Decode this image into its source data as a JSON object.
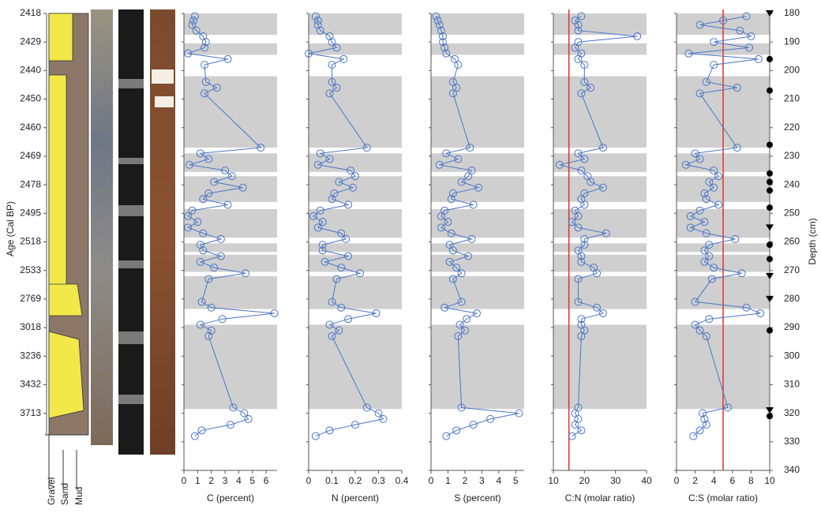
{
  "chart_data": {
    "type": "depth-profile",
    "y_label": "Depth (cm)",
    "ylim": [
      180,
      340
    ],
    "yticks": [
      180,
      190,
      200,
      210,
      220,
      230,
      240,
      250,
      260,
      270,
      280,
      290,
      300,
      310,
      320,
      330,
      340
    ],
    "age_label": "Age (Cal BP)",
    "age_ticks": [
      {
        "value": 180,
        "label": "2418"
      },
      {
        "value": 190,
        "label": "2429"
      },
      {
        "value": 200,
        "label": "2440"
      },
      {
        "value": 210,
        "label": "2450"
      },
      {
        "value": 220,
        "label": "2460"
      },
      {
        "value": 230,
        "label": "2469"
      },
      {
        "value": 240,
        "label": "2478"
      },
      {
        "value": 250,
        "label": "2495"
      },
      {
        "value": 260,
        "label": "2518"
      },
      {
        "value": 270,
        "label": "2533"
      },
      {
        "value": 280,
        "label": "2769"
      },
      {
        "value": 290,
        "label": "3018"
      },
      {
        "value": 300,
        "label": "3236"
      },
      {
        "value": 310,
        "label": "3432"
      },
      {
        "value": 320,
        "label": "3713"
      }
    ],
    "lithology_labels": [
      "Gravel",
      "Sand",
      "Mud"
    ],
    "gray_intervals": [
      [
        180,
        187.5
      ],
      [
        190.5,
        194.5
      ],
      [
        202,
        227
      ],
      [
        229,
        235.5
      ],
      [
        237,
        246
      ],
      [
        248.5,
        258.5
      ],
      [
        260.5,
        263.5
      ],
      [
        264.5,
        270.5
      ],
      [
        272,
        283.5
      ],
      [
        289,
        318.5
      ]
    ],
    "triangle_depths": [
      180,
      255,
      272,
      280,
      319
    ],
    "circle_depths": [
      196,
      207,
      226,
      236,
      239,
      242,
      248,
      261,
      266,
      291,
      321
    ],
    "depths": [
      181,
      182.5,
      184,
      186,
      188,
      190,
      192,
      194,
      196,
      198,
      204,
      206,
      208,
      227,
      229,
      231,
      233,
      235,
      237,
      239,
      241,
      243,
      245,
      247,
      249,
      251,
      253,
      255,
      257,
      259,
      261,
      263,
      265,
      267,
      269,
      271,
      273,
      281,
      283,
      285,
      287,
      289,
      291,
      293,
      318,
      320,
      322,
      324,
      326,
      328
    ],
    "color": "#4a76c8",
    "ref_color": "#e0302a",
    "panels": [
      {
        "x_label": "C (percent)",
        "xlim": [
          0,
          6.8
        ],
        "xticks": [
          0,
          1,
          2,
          3,
          4,
          5,
          6
        ],
        "values": [
          0.8,
          0.7,
          0.6,
          0.9,
          1.4,
          1.6,
          1.5,
          0.3,
          3.2,
          1.5,
          1.6,
          2.4,
          1.5,
          5.6,
          1.2,
          1.8,
          0.4,
          3.0,
          3.5,
          2.2,
          4.3,
          1.8,
          1.4,
          3.2,
          0.6,
          0.3,
          1.0,
          0.3,
          1.4,
          2.7,
          1.2,
          1.4,
          2.7,
          1.2,
          2.2,
          4.5,
          1.8,
          1.3,
          2.0,
          6.6,
          2.8,
          1.2,
          2.0,
          1.8,
          3.6,
          4.4,
          4.7,
          3.4,
          1.3,
          0.8
        ]
      },
      {
        "x_label": "N (percent)",
        "xlim": [
          0,
          0.4
        ],
        "xticks": [
          0,
          0.1,
          0.2,
          0.3,
          0.4
        ],
        "values": [
          0.03,
          0.04,
          0.04,
          0.05,
          0.09,
          0.1,
          0.12,
          0.0,
          0.15,
          0.1,
          0.1,
          0.12,
          0.09,
          0.25,
          0.05,
          0.09,
          0.04,
          0.18,
          0.2,
          0.13,
          0.19,
          0.11,
          0.1,
          0.17,
          0.05,
          0.02,
          0.06,
          0.04,
          0.14,
          0.16,
          0.06,
          0.06,
          0.17,
          0.07,
          0.14,
          0.22,
          0.12,
          0.1,
          0.14,
          0.29,
          0.17,
          0.09,
          0.13,
          0.1,
          0.25,
          0.3,
          0.32,
          0.2,
          0.09,
          0.03
        ]
      },
      {
        "x_label": "S (percent)",
        "xlim": [
          0,
          5.5
        ],
        "xticks": [
          0,
          1,
          2,
          3,
          4,
          5
        ],
        "values": [
          0.3,
          0.4,
          0.5,
          0.6,
          0.7,
          0.7,
          0.8,
          0.9,
          1.4,
          1.6,
          1.3,
          1.5,
          1.3,
          2.3,
          0.9,
          1.6,
          0.5,
          2.4,
          2.2,
          1.8,
          2.8,
          1.3,
          1.2,
          2.5,
          0.8,
          0.6,
          1.0,
          0.6,
          1.2,
          2.4,
          1.1,
          1.3,
          2.2,
          1.1,
          1.5,
          1.8,
          1.3,
          1.8,
          0.8,
          2.7,
          2.1,
          1.7,
          2.0,
          1.6,
          1.8,
          5.2,
          3.5,
          2.5,
          1.5,
          0.9
        ]
      },
      {
        "x_label": "C:N (molar ratio)",
        "xlim": [
          10,
          40
        ],
        "xticks": [
          10,
          20,
          30,
          40
        ],
        "ref_line": 15,
        "values": [
          19,
          17,
          18,
          18,
          37,
          18,
          17,
          19,
          18,
          20,
          20,
          22,
          19,
          26,
          18,
          20,
          12,
          19,
          21,
          22,
          26,
          20,
          19,
          20,
          17,
          18,
          16,
          18,
          27,
          20,
          20,
          18,
          19,
          19,
          23,
          24,
          18,
          18,
          24,
          26,
          19,
          19,
          20,
          19,
          18,
          17,
          18,
          17,
          19,
          16
        ]
      },
      {
        "x_label": "C:S (molar ratio)",
        "xlim": [
          0,
          10
        ],
        "xticks": [
          0,
          2,
          4,
          6,
          8,
          10
        ],
        "ref_line": 5,
        "values": [
          7.5,
          5.0,
          2.5,
          6.8,
          8.0,
          4.0,
          7.8,
          1.3,
          8.8,
          4.0,
          3.2,
          6.5,
          2.5,
          6.5,
          2.0,
          2.5,
          1.0,
          4.0,
          4.5,
          3.5,
          4.0,
          3.0,
          3.2,
          4.5,
          2.5,
          1.5,
          3.0,
          1.5,
          3.2,
          6.3,
          3.5,
          3.0,
          3.5,
          3.0,
          4.0,
          7.0,
          3.8,
          2.0,
          7.5,
          9.0,
          3.5,
          2.0,
          2.5,
          3.2,
          5.5,
          2.8,
          3.0,
          3.2,
          2.5,
          1.8
        ]
      }
    ]
  }
}
